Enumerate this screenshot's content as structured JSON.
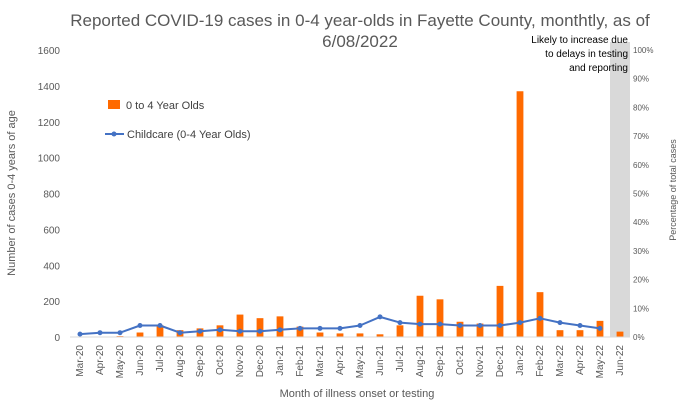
{
  "chart_data": {
    "type": "bar+line",
    "title_line1": "Reported COVID-19 cases in 0-4 year-olds in Fayette County, monthtly, as of",
    "title_line2": "6/08/2022",
    "xlabel": "Month of illness onset or testing",
    "ylabel": "Number of cases 0-4 years of age",
    "y2label": "Percentage of total cases",
    "ylim": [
      0,
      1600
    ],
    "yticks": [
      0,
      200,
      400,
      600,
      800,
      1000,
      1200,
      1400,
      1600
    ],
    "y2lim": [
      0,
      100
    ],
    "y2ticks": [
      "0%",
      "10%",
      "20%",
      "30%",
      "40%",
      "50%",
      "60%",
      "70%",
      "80%",
      "90%",
      "100%"
    ],
    "categories": [
      "Mar-20",
      "Apr-20",
      "May-20",
      "Jun-20",
      "Jul-20",
      "Aug-20",
      "Sep-20",
      "Oct-20",
      "Nov-20",
      "Dec-20",
      "Jan-21",
      "Feb-21",
      "Mar-21",
      "Apr-21",
      "May-21",
      "Jun-21",
      "Jul-21",
      "Aug-21",
      "Sep-21",
      "Oct-21",
      "Nov-21",
      "Dec-21",
      "Jan-22",
      "Feb-22",
      "Mar-22",
      "Apr-22",
      "May-22",
      "Jun-22"
    ],
    "series": [
      {
        "name": "0 to 4 Year Olds",
        "kind": "bar",
        "axis": "left",
        "color": "#FF6A00",
        "values": [
          2,
          2,
          5,
          25,
          65,
          38,
          48,
          65,
          125,
          105,
          115,
          58,
          25,
          20,
          20,
          15,
          65,
          230,
          210,
          85,
          75,
          285,
          1370,
          250,
          38,
          38,
          90,
          30
        ]
      },
      {
        "name": "Childcare (0-4 Year Olds)",
        "kind": "line",
        "axis": "right",
        "color": "#4472C4",
        "values": [
          1,
          1.5,
          1.5,
          4,
          4,
          1.5,
          2,
          2.5,
          2,
          2,
          2.5,
          3,
          3,
          3,
          4,
          7,
          5,
          4.5,
          4.5,
          4,
          4,
          4,
          5,
          6.5,
          5,
          4,
          3,
          null
        ]
      }
    ],
    "shaded_region": {
      "category": "Jun-22",
      "color": "#D9D9D9"
    },
    "annotation_lines": [
      "Likely to increase due",
      "to delays in testing",
      "and reporting"
    ],
    "legend_placement": "upper-left",
    "grid": false
  }
}
